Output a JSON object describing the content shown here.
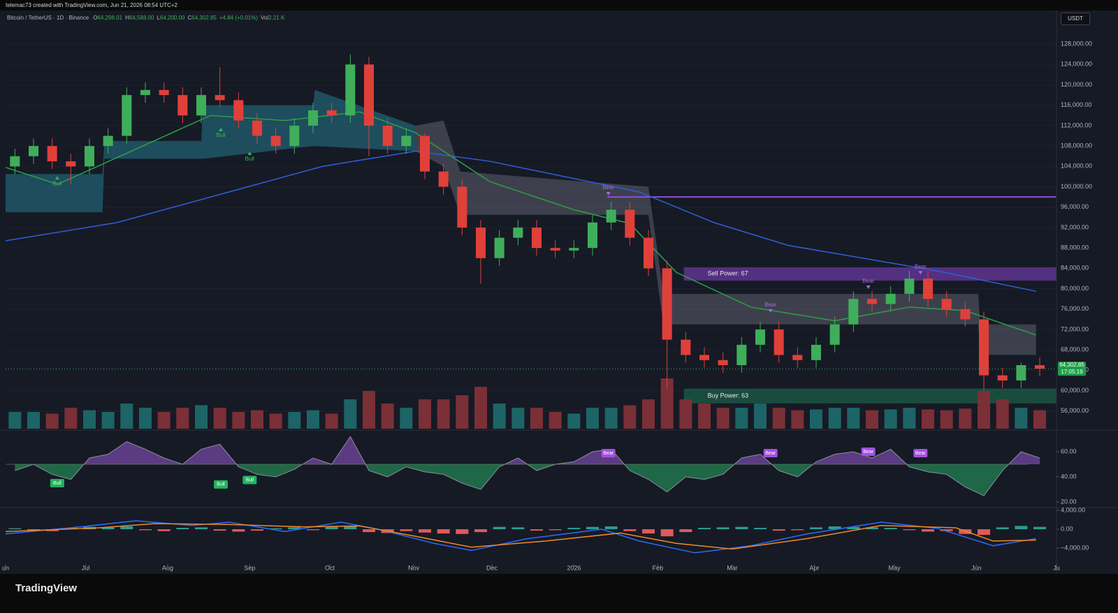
{
  "top_note": "telemac73 created with TradingView.com, Jun 21, 2026 08:54 UTC+2",
  "header": {
    "symbol": "Bitcoin / TetherUS · 1D · Binance",
    "ohlc": [
      {
        "key": "O",
        "value": "64,298.01"
      },
      {
        "key": "H",
        "value": "64,588.00"
      },
      {
        "key": "L",
        "value": "64,200.00"
      },
      {
        "key": "C",
        "value": "64,302.85"
      }
    ],
    "change": "+4.84 (+0.01%)",
    "volume_key": "Vol",
    "volume": "2.21 K"
  },
  "currency": "USDT",
  "brand": "TradingView",
  "chart_data": {
    "type": "candlestick",
    "xlim": [
      0,
      56.4
    ],
    "xticks": [
      {
        "value": 0,
        "label": "un"
      },
      {
        "value": 4.3,
        "label": "Jul"
      },
      {
        "value": 8.7,
        "label": "Aug"
      },
      {
        "value": 13.1,
        "label": "Sep"
      },
      {
        "value": 17.4,
        "label": "Oct"
      },
      {
        "value": 21.9,
        "label": "Nov"
      },
      {
        "value": 26.1,
        "label": "Dec"
      },
      {
        "value": 30.5,
        "label": "2026"
      },
      {
        "value": 35,
        "label": "Feb"
      },
      {
        "value": 39,
        "label": "Mar"
      },
      {
        "value": 43.4,
        "label": "Apr"
      },
      {
        "value": 47.7,
        "label": "May"
      },
      {
        "value": 52.1,
        "label": "Jun"
      },
      {
        "value": 56.4,
        "label": "Ju"
      }
    ],
    "ylim": [
      52400,
      134600
    ],
    "yticks": [
      {
        "value": 128000,
        "label": "128,000.00"
      },
      {
        "value": 124000,
        "label": "124,000.00"
      },
      {
        "value": 120000,
        "label": "120,000.00"
      },
      {
        "value": 116000,
        "label": "116,000.00"
      },
      {
        "value": 112000,
        "label": "112,000.00"
      },
      {
        "value": 108000,
        "label": "108,000.00"
      },
      {
        "value": 104000,
        "label": "104,000.00"
      },
      {
        "value": 100000,
        "label": "100,000.00"
      },
      {
        "value": 96000,
        "label": "96,000.00"
      },
      {
        "value": 92000,
        "label": "92,000.00"
      },
      {
        "value": 88000,
        "label": "88,000.00"
      },
      {
        "value": 84000,
        "label": "84,000.00"
      },
      {
        "value": 80000,
        "label": "80,000.00"
      },
      {
        "value": 76000,
        "label": "76,000.00"
      },
      {
        "value": 72000,
        "label": "72,000.00"
      },
      {
        "value": 68000,
        "label": "68,000.00"
      },
      {
        "value": 64000,
        "label": "64,000.00"
      },
      {
        "value": 60000,
        "label": "60,000.00"
      },
      {
        "value": 56000,
        "label": "56,000.00"
      }
    ],
    "up_color": "#3fae5a",
    "down_color": "#e0403a",
    "open": [
      104000,
      106000,
      108000,
      105000,
      104000,
      108000,
      110000,
      118000,
      119000,
      118000,
      114000,
      118000,
      117000,
      113000,
      110000,
      108000,
      112000,
      115000,
      114000,
      124000,
      112000,
      108000,
      110000,
      103000,
      100000,
      92000,
      86000,
      90000,
      92000,
      88000,
      87500,
      88000,
      93000,
      95500,
      90000,
      84000,
      70000,
      67000,
      66000,
      65000,
      69000,
      72000,
      67000,
      66000,
      69000,
      73000,
      78000,
      77000,
      79000,
      82000,
      78000,
      76000,
      74000,
      63000,
      62000,
      65000
    ],
    "high": [
      107500,
      109500,
      109500,
      106500,
      109500,
      111500,
      119500,
      120500,
      120500,
      119500,
      119500,
      123500,
      118500,
      114500,
      111500,
      113500,
      116500,
      116500,
      126000,
      125500,
      113500,
      111500,
      110500,
      104500,
      101500,
      93500,
      91500,
      93500,
      93500,
      89500,
      89500,
      94500,
      97000,
      97000,
      91500,
      85500,
      71500,
      68500,
      67500,
      70500,
      73500,
      73500,
      68500,
      70500,
      74500,
      79500,
      79500,
      80500,
      83500,
      83500,
      79500,
      77500,
      75500,
      64500,
      65500,
      66500
    ],
    "low": [
      102500,
      104500,
      103500,
      100500,
      102500,
      106500,
      108500,
      116500,
      116500,
      112500,
      112500,
      115500,
      111500,
      108500,
      106500,
      106500,
      110500,
      112500,
      112500,
      106000,
      106500,
      106500,
      101500,
      98500,
      90500,
      81000,
      84500,
      88500,
      86500,
      86000,
      86000,
      86500,
      91500,
      88500,
      82500,
      60500,
      65500,
      64500,
      63500,
      63500,
      67500,
      65500,
      64500,
      64500,
      67500,
      71500,
      75500,
      75500,
      77500,
      76500,
      74500,
      72500,
      60000,
      60500,
      60500,
      62800
    ],
    "close": [
      106000,
      108000,
      105000,
      104000,
      108000,
      110000,
      118000,
      119000,
      118000,
      114000,
      118000,
      117000,
      113000,
      110000,
      108000,
      112000,
      115000,
      114000,
      124000,
      112000,
      108000,
      110000,
      103000,
      100000,
      92000,
      86000,
      90000,
      92000,
      88000,
      87500,
      88000,
      93000,
      95500,
      90000,
      84000,
      70000,
      67000,
      66000,
      65000,
      69000,
      72000,
      67000,
      66000,
      69000,
      73000,
      78000,
      77000,
      79000,
      82000,
      78000,
      76000,
      74000,
      63000,
      62000,
      65000,
      64302.85
    ],
    "volume": [
      2,
      2,
      1.8,
      2.5,
      2.2,
      2,
      3,
      2.5,
      2,
      2.5,
      2.8,
      2.5,
      2,
      2.2,
      1.8,
      2,
      2.2,
      1.8,
      3.5,
      4.5,
      3,
      2.5,
      3.5,
      3.5,
      4,
      5,
      3,
      2.5,
      2.5,
      2,
      1.8,
      2.5,
      2.5,
      2.8,
      3.5,
      6,
      3.5,
      3,
      2.5,
      2.5,
      3,
      2.5,
      2.2,
      2.3,
      2.5,
      2.5,
      2.2,
      2.3,
      2.5,
      2.3,
      2.2,
      2.4,
      4.5,
      3.5,
      2.5,
      2.21
    ],
    "volume_up_color": "#1d6466",
    "volume_down_color": "#7b2f36",
    "lines": [
      {
        "color": "#2f5fd8",
        "x": [
          0,
          6,
          12,
          17,
          22,
          26,
          30,
          34,
          38,
          42,
          46,
          50,
          55.3
        ],
        "values": [
          89400,
          93000,
          99000,
          104000,
          107000,
          105000,
          102000,
          99000,
          93000,
          88500,
          86000,
          83500,
          79500
        ]
      },
      {
        "color": "#2e9e4a",
        "x": [
          0,
          2.8,
          11,
          15,
          19,
          22,
          26,
          30.5,
          33.5,
          36,
          40,
          44.5,
          48.5,
          51.5,
          55.3
        ],
        "values": [
          103800,
          100500,
          114000,
          113000,
          114700,
          110600,
          101000,
          95500,
          92800,
          83200,
          76400,
          73700,
          76400,
          75700,
          70900
        ]
      }
    ],
    "bands": [
      {
        "color": "rgba(38,120,140,0.55)",
        "x": [
          0,
          5.2,
          5.3,
          10.5,
          10.6,
          16.5,
          16.6,
          22
        ],
        "upper": [
          102500,
          102500,
          109000,
          109000,
          116000,
          116000,
          119000,
          112000
        ],
        "lower": [
          95000,
          95000,
          105500,
          105500,
          105500,
          108000,
          108000,
          107000
        ]
      },
      {
        "color": "rgba(120,123,134,0.4)",
        "x": [
          22,
          23.5,
          24.4,
          34.5,
          35.3,
          52.2,
          52.3,
          55.3
        ],
        "upper": [
          112000,
          113000,
          103000,
          100000,
          79000,
          79000,
          73000,
          73000
        ],
        "lower": [
          107000,
          104000,
          94500,
          94500,
          73000,
          73000,
          67000,
          67000
        ]
      }
    ],
    "zones": [
      {
        "label": "Sell Power: 67",
        "top": 84200,
        "bottom": 81600,
        "x0": 36.4,
        "color": "rgba(126,64,190,0.6)"
      },
      {
        "label": "Buy Power: 63",
        "top": 60400,
        "bottom": 57500,
        "x0": 36.4,
        "color": "rgba(30,110,80,0.6)"
      }
    ],
    "level": {
      "value": 98000,
      "x0": 32.3,
      "color": "#8e4fd6"
    },
    "annotations": [
      {
        "text": "Bull",
        "x": 2.77,
        "y": 100600
      },
      {
        "text": "Bull",
        "x": 11.55,
        "y": 110070
      },
      {
        "text": "Bull",
        "x": 13.1,
        "y": 105400
      },
      {
        "text": "Bear",
        "x": 32.35,
        "y": 99800
      },
      {
        "text": "Bear",
        "x": 41.05,
        "y": 76800
      },
      {
        "text": "Bear",
        "x": 46.3,
        "y": 81460
      },
      {
        "text": "Bear",
        "x": 49.1,
        "y": 84300
      }
    ],
    "last_price_label": "64,302.85",
    "countdown": "17:05:19",
    "rsi": {
      "ylim": [
        16.7,
        76.1
      ],
      "yticks": [
        {
          "value": 60,
          "label": "60.00"
        },
        {
          "value": 40,
          "label": "40.00"
        },
        {
          "value": 20,
          "label": "20.00"
        }
      ],
      "mid": 50,
      "values": [
        45,
        50,
        42,
        38,
        55,
        58,
        68,
        62,
        55,
        50,
        62,
        66,
        48,
        42,
        40,
        46,
        55,
        50,
        72,
        45,
        40,
        48,
        44,
        42,
        35,
        30,
        48,
        55,
        45,
        50,
        52,
        60,
        62,
        45,
        38,
        28,
        40,
        38,
        42,
        55,
        58,
        45,
        40,
        52,
        58,
        60,
        55,
        62,
        48,
        44,
        42,
        32,
        25,
        45,
        60,
        55
      ],
      "labels": [
        {
          "text": "Bull",
          "x": 2.77,
          "y": 35
        },
        {
          "text": "Bull",
          "x": 11.55,
          "y": 34
        },
        {
          "text": "Bull",
          "x": 13.1,
          "y": 37.5
        },
        {
          "text": "Bear",
          "x": 32.35,
          "y": 58.9
        },
        {
          "text": "Bear",
          "x": 41.05,
          "y": 58.9
        },
        {
          "text": "Bear",
          "x": 46.3,
          "y": 60
        },
        {
          "text": "Bear",
          "x": 49.1,
          "y": 58.9
        }
      ]
    },
    "macd": {
      "ylim": [
        -7400,
        4450
      ],
      "yticks": [
        {
          "value": 4000,
          "label": "4,000.00"
        },
        {
          "value": 0,
          "label": "0.00"
        },
        {
          "value": -4000,
          "label": "−4,000.00"
        }
      ],
      "histogram": [
        200,
        -300,
        -400,
        300,
        500,
        400,
        600,
        -200,
        -400,
        300,
        400,
        -300,
        -500,
        -300,
        200,
        400,
        -200,
        500,
        700,
        -600,
        -800,
        -400,
        -700,
        -900,
        -1000,
        -600,
        500,
        400,
        -300,
        -200,
        300,
        500,
        600,
        -400,
        -900,
        -1500,
        -600,
        300,
        400,
        500,
        300,
        -300,
        -200,
        400,
        600,
        500,
        400,
        300,
        -200,
        -500,
        -400,
        -1000,
        -1200,
        400,
        700,
        500
      ],
      "lines": [
        {
          "color": "#2f6bff",
          "x": [
            0,
            4,
            7,
            10,
            12,
            15,
            18,
            20,
            23,
            25,
            28,
            32,
            34,
            37,
            40,
            43,
            47,
            50,
            53,
            55.3
          ],
          "values": [
            -1000,
            500,
            1800,
            800,
            1500,
            -500,
            1500,
            0,
            -3000,
            -4500,
            -2000,
            0,
            -2500,
            -5000,
            -3500,
            -1000,
            1500,
            200,
            -3500,
            -2000
          ]
        },
        {
          "color": "#f08a24",
          "x": [
            0,
            5,
            8,
            12,
            16,
            19,
            22,
            25,
            29,
            33,
            36,
            39,
            43,
            47,
            51,
            53,
            55.3
          ],
          "values": [
            -500,
            300,
            1200,
            1000,
            500,
            700,
            -1500,
            -3800,
            -2500,
            -800,
            -3000,
            -4200,
            -2000,
            800,
            300,
            -2500,
            -2300
          ]
        }
      ]
    }
  }
}
